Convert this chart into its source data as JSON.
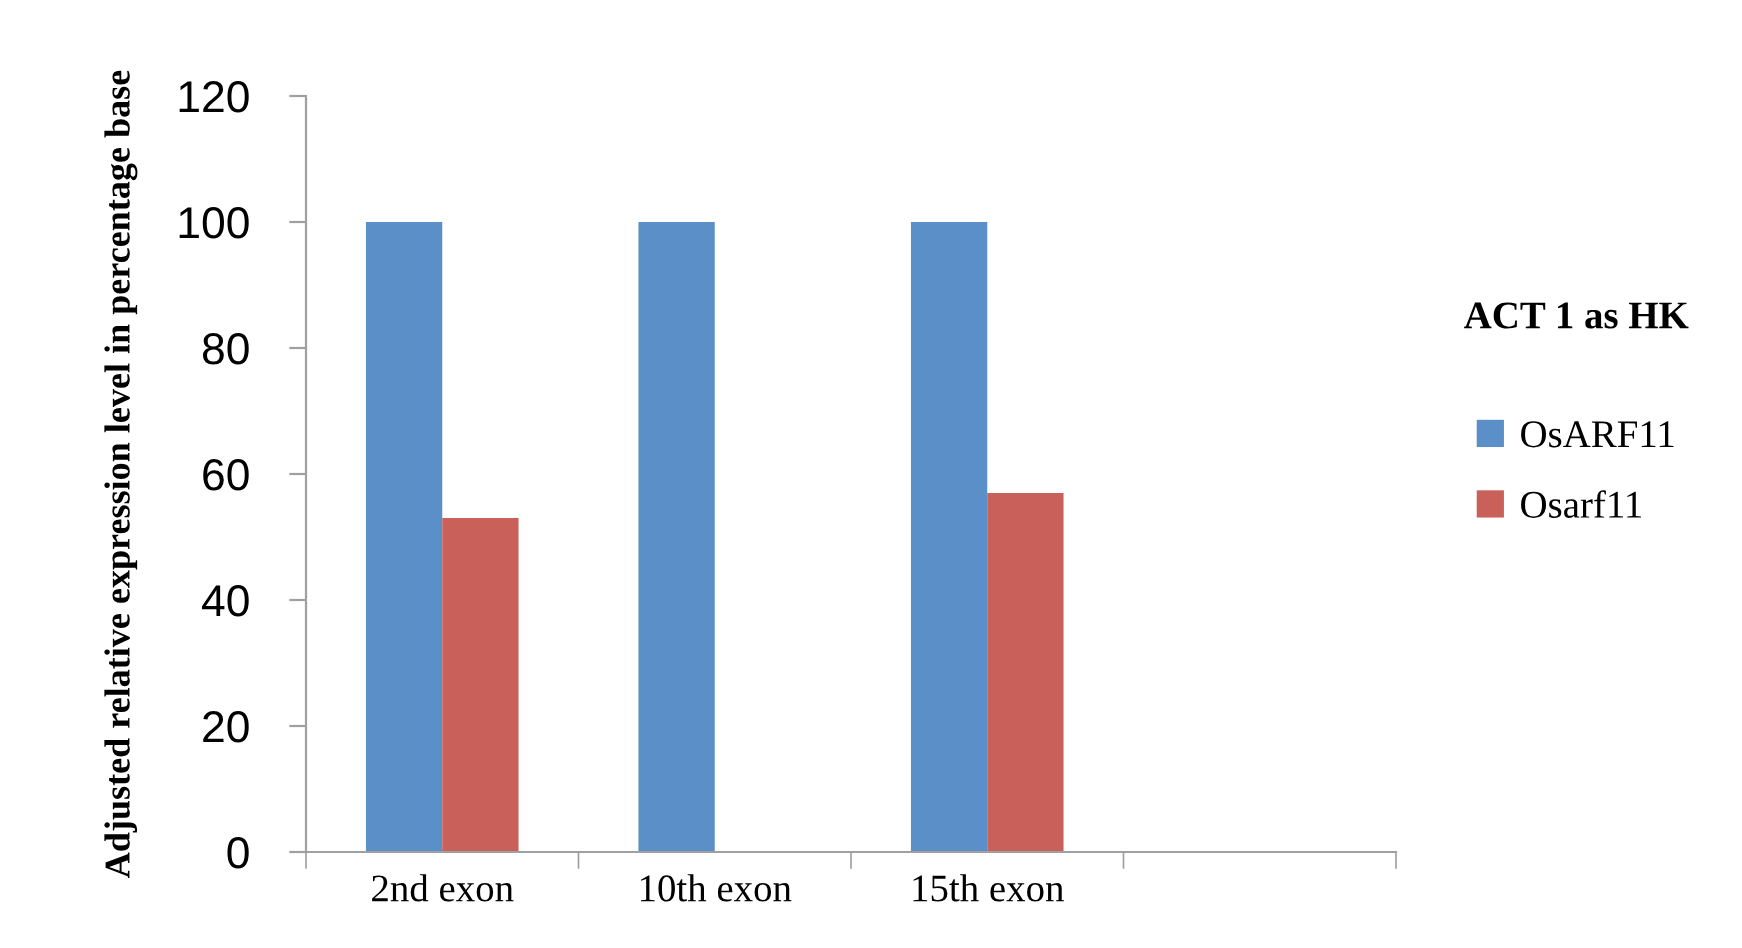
{
  "chart_data": {
    "type": "bar",
    "ylabel": "Adjusted relative expression level in percentage base",
    "legend_title": "ACT 1 as HK",
    "categories": [
      "2nd exon",
      "10th exon",
      "15th exon",
      null
    ],
    "series": [
      {
        "name": "OsARF11",
        "color": "#5b8fc7",
        "values": [
          100,
          100,
          100,
          null
        ]
      },
      {
        "name": "Osarf11",
        "color": "#c9605a",
        "values": [
          53,
          null,
          57,
          null
        ]
      }
    ],
    "ylim": [
      0,
      120
    ],
    "yticks": [
      0,
      20,
      40,
      60,
      80,
      100,
      120
    ],
    "grid": false,
    "legend": "right"
  }
}
